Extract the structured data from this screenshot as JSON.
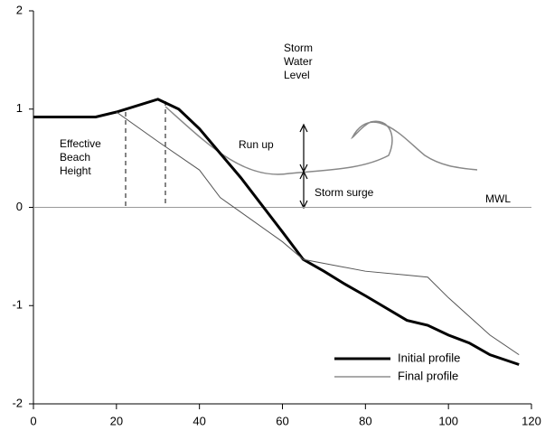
{
  "chart_data": {
    "type": "line",
    "annotations": {
      "storm_water_level": "Storm Water Level",
      "effective_beach_height": "Effective Beach Height",
      "run_up": "Run up",
      "storm_surge": "Storm surge",
      "mwl": "MWL"
    },
    "series": [
      {
        "name": "Initial profile",
        "color": "#000000",
        "width": 3,
        "x": [
          0,
          15,
          20,
          30,
          35,
          40,
          50,
          60,
          65,
          70,
          75,
          80,
          90,
          95,
          100,
          105,
          110,
          117
        ],
        "values": [
          0.92,
          0.92,
          0.97,
          1.1,
          1.0,
          0.8,
          0.3,
          -0.25,
          -0.53,
          -0.65,
          -0.78,
          -0.9,
          -1.15,
          -1.2,
          -1.3,
          -1.38,
          -1.5,
          -1.6
        ]
      },
      {
        "name": "Final profile",
        "color": "#555555",
        "width": 1,
        "x": [
          20,
          30,
          40,
          45,
          50,
          60,
          65,
          70,
          80,
          90,
          95,
          100,
          110,
          117
        ],
        "values": [
          0.97,
          0.67,
          0.38,
          0.1,
          -0.05,
          -0.35,
          -0.53,
          -0.57,
          -0.65,
          -0.69,
          -0.71,
          -0.92,
          -1.3,
          -1.5
        ]
      }
    ],
    "xlim": [
      0,
      120
    ],
    "xticks": [
      0,
      20,
      40,
      60,
      80,
      100,
      120
    ],
    "ylim": [
      -2,
      2
    ],
    "yticks": [
      -2,
      -1,
      0,
      1,
      2
    ],
    "grid": false
  }
}
